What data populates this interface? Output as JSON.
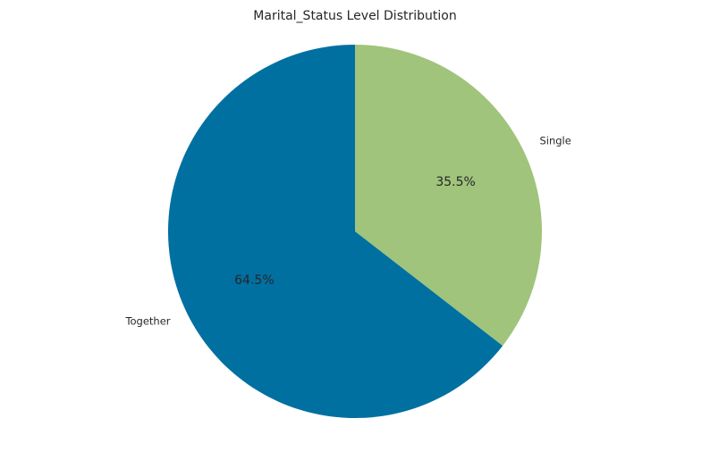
{
  "chart_data": {
    "type": "pie",
    "title": "Marital_Status Level Distribution",
    "categories": [
      "Single",
      "Together"
    ],
    "values": [
      35.5,
      64.5
    ],
    "percent_labels": [
      "35.5%",
      "64.5%"
    ],
    "colors": [
      "#a0c47b",
      "#0070a1"
    ],
    "start_angle_deg": 90,
    "direction": "clockwise",
    "legend": "none"
  }
}
